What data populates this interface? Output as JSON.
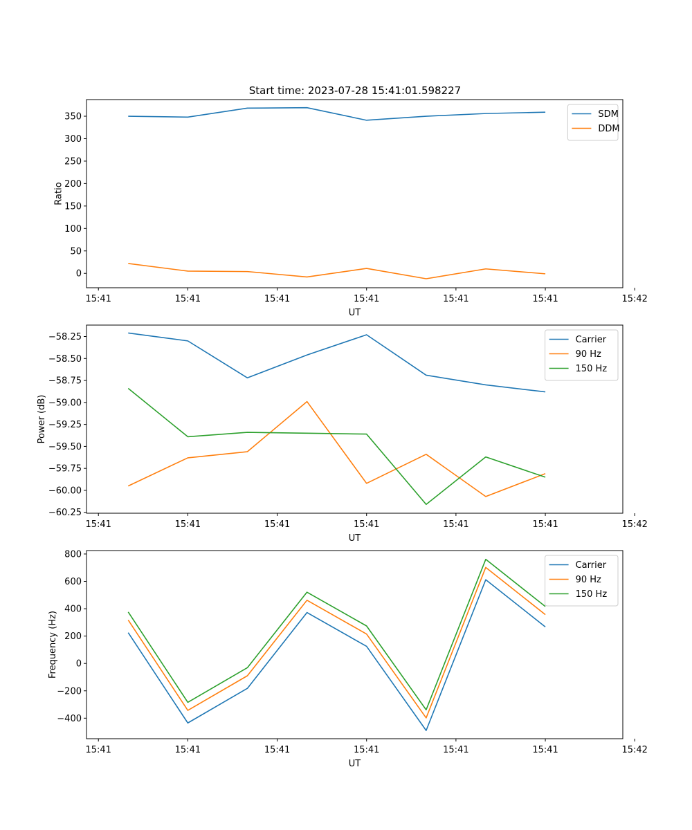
{
  "figure_title": "Start time: 2023-07-28 15:41:01.598227",
  "colors": {
    "blue": "#1f77b4",
    "orange": "#ff7f0e",
    "green": "#2ca02c"
  },
  "chart_data": [
    {
      "type": "line",
      "title": "Start time: 2023-07-28 15:41:01.598227",
      "xlabel": "UT",
      "ylabel": "Ratio",
      "x": [
        1,
        2,
        3,
        4,
        5,
        6,
        7,
        8
      ],
      "xlim": [
        0.3,
        9.3
      ],
      "ylim": [
        -32,
        387
      ],
      "xticks": [
        0.5,
        2,
        3.5,
        5,
        6.5,
        8,
        9.5
      ],
      "xtick_labels": [
        "15:41",
        "15:41",
        "15:41",
        "15:41",
        "15:41",
        "15:41",
        "15:42"
      ],
      "yticks": [
        0,
        50,
        100,
        150,
        200,
        250,
        300,
        350
      ],
      "ytick_labels": [
        "0",
        "50",
        "100",
        "150",
        "200",
        "250",
        "300",
        "350"
      ],
      "legend_position": "top-right",
      "series": [
        {
          "name": "SDM",
          "color": "#1f77b4",
          "values": [
            350,
            348,
            368,
            369,
            341,
            350,
            356,
            359
          ]
        },
        {
          "name": "DDM",
          "color": "#ff7f0e",
          "values": [
            22,
            5,
            4,
            -8,
            11,
            -12,
            10,
            -1
          ]
        }
      ]
    },
    {
      "type": "line",
      "title": "",
      "xlabel": "UT",
      "ylabel": "Power (dB)",
      "x": [
        1,
        2,
        3,
        4,
        5,
        6,
        7,
        8
      ],
      "xlim": [
        0.3,
        9.3
      ],
      "ylim": [
        -60.26,
        -58.12
      ],
      "xticks": [
        0.5,
        2,
        3.5,
        5,
        6.5,
        8,
        9.5
      ],
      "xtick_labels": [
        "15:41",
        "15:41",
        "15:41",
        "15:41",
        "15:41",
        "15:41",
        "15:42"
      ],
      "yticks": [
        -60.25,
        -60.0,
        -59.75,
        -59.5,
        -59.25,
        -59.0,
        -58.75,
        -58.5,
        -58.25
      ],
      "ytick_labels": [
        "−60.25",
        "−60.00",
        "−59.75",
        "−59.50",
        "−59.25",
        "−59.00",
        "−58.75",
        "−58.50",
        "−58.25"
      ],
      "legend_position": "top-right",
      "series": [
        {
          "name": "Carrier",
          "color": "#1f77b4",
          "values": [
            -58.21,
            -58.3,
            -58.72,
            -58.46,
            -58.23,
            -58.69,
            -58.8,
            -58.88
          ]
        },
        {
          "name": "90 Hz",
          "color": "#ff7f0e",
          "values": [
            -59.95,
            -59.63,
            -59.56,
            -58.99,
            -59.92,
            -59.59,
            -60.07,
            -59.81
          ]
        },
        {
          "name": "150 Hz",
          "color": "#2ca02c",
          "values": [
            -58.84,
            -59.39,
            -59.34,
            -59.35,
            -59.36,
            -60.16,
            -59.62,
            -59.85
          ]
        }
      ]
    },
    {
      "type": "line",
      "title": "",
      "xlabel": "UT",
      "ylabel": "Frequency (Hz)",
      "x": [
        1,
        2,
        3,
        4,
        5,
        6,
        7,
        8
      ],
      "xlim": [
        0.3,
        9.3
      ],
      "ylim": [
        -550,
        825
      ],
      "xticks": [
        0.5,
        2,
        3.5,
        5,
        6.5,
        8,
        9.5
      ],
      "xtick_labels": [
        "15:41",
        "15:41",
        "15:41",
        "15:41",
        "15:41",
        "15:41",
        "15:42"
      ],
      "yticks": [
        -400,
        -200,
        0,
        200,
        400,
        600,
        800
      ],
      "ytick_labels": [
        "−400",
        "−200",
        "0",
        "200",
        "400",
        "600",
        "800"
      ],
      "legend_position": "top-right",
      "series": [
        {
          "name": "Carrier",
          "color": "#1f77b4",
          "values": [
            225,
            -435,
            -182,
            372,
            125,
            -490,
            612,
            267
          ]
        },
        {
          "name": "90 Hz",
          "color": "#ff7f0e",
          "values": [
            317,
            -343,
            -90,
            462,
            215,
            -398,
            702,
            357
          ]
        },
        {
          "name": "150 Hz",
          "color": "#2ca02c",
          "values": [
            376,
            -284,
            -31,
            521,
            274,
            -339,
            761,
            416
          ]
        }
      ]
    }
  ]
}
